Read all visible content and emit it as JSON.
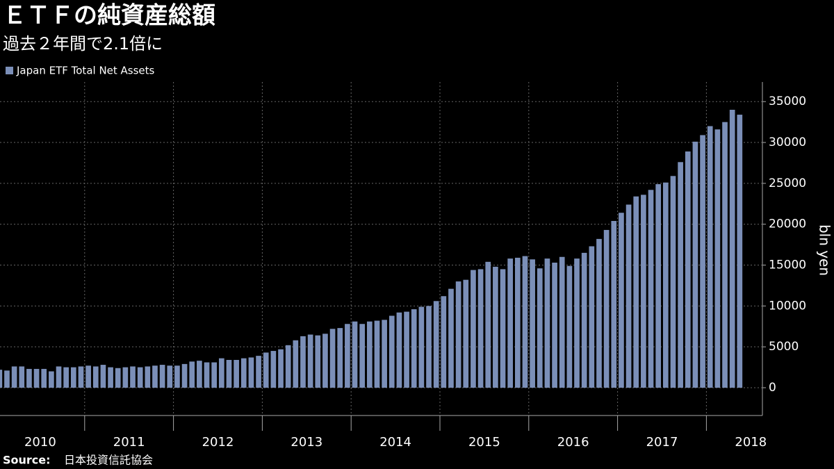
{
  "chart_data": {
    "type": "bar",
    "title": "ＥＴＦの純資産総額",
    "subtitle": "過去２年間で2.1倍に",
    "y_label": "bln yen",
    "source_label": "Source:",
    "source": "日本投資信託協会",
    "series": [
      {
        "name": "Japan ETF Total Net Assets",
        "color": "#7b8fb8",
        "values": [
          2200,
          2100,
          2600,
          2600,
          2300,
          2300,
          2300,
          2000,
          2600,
          2500,
          2500,
          2600,
          2700,
          2600,
          2800,
          2500,
          2400,
          2500,
          2600,
          2500,
          2600,
          2700,
          2800,
          2700,
          2700,
          2900,
          3200,
          3300,
          3100,
          3100,
          3600,
          3400,
          3400,
          3600,
          3700,
          3900,
          4300,
          4500,
          4700,
          5200,
          5800,
          6300,
          6500,
          6400,
          6600,
          7200,
          7300,
          7800,
          8100,
          7800,
          8100,
          8200,
          8300,
          8800,
          9200,
          9300,
          9600,
          9900,
          10000,
          10600,
          11200,
          12100,
          13000,
          13200,
          14400,
          14500,
          15400,
          14800,
          14500,
          15800,
          15900,
          16100,
          15700,
          14600,
          15800,
          15300,
          16000,
          14900,
          15800,
          16500,
          17300,
          18200,
          19300,
          20400,
          21400,
          22400,
          23400,
          23600,
          24200,
          24900,
          25100,
          25900,
          27600,
          28900,
          30100,
          30900,
          32000,
          31600,
          32500,
          34000,
          33400
        ]
      }
    ],
    "years": [
      "2010",
      "2011",
      "2012",
      "2013",
      "2014",
      "2015",
      "2016",
      "2017",
      "2018"
    ],
    "ylim": [
      -3400,
      37400
    ],
    "yticks": [
      0,
      5000,
      10000,
      15000,
      20000,
      25000,
      30000,
      35000
    ],
    "grid": true
  }
}
